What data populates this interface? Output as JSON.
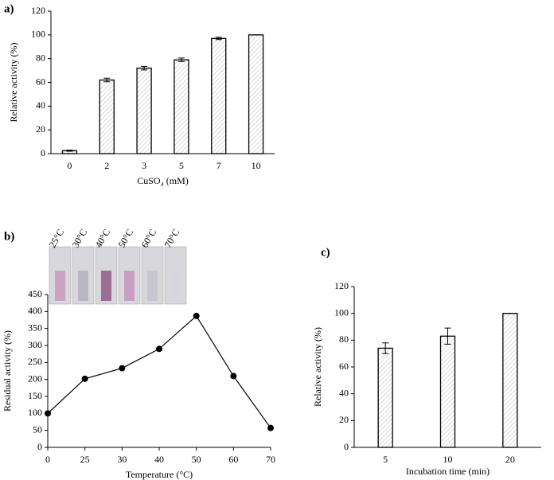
{
  "chart_data": [
    {
      "type": "bar",
      "label": "a)",
      "x_label": "CuSO₄ (mM)",
      "y_label": "Relative activity (%)",
      "categories": [
        "0",
        "2",
        "3",
        "5",
        "7",
        "10"
      ],
      "values": [
        2.5,
        62,
        72,
        79,
        97,
        100
      ],
      "errors": [
        0.5,
        1.5,
        1.5,
        1.5,
        1,
        0
      ],
      "color": "#000000",
      "pattern": "hatch",
      "ylim": [
        0,
        120
      ],
      "yticks": [
        0,
        20,
        40,
        60,
        80,
        100,
        120
      ]
    },
    {
      "type": "line",
      "label": "b)",
      "x_label": "Temperature (°C)",
      "y_label": "Residual activity (%)",
      "categories": [
        "0",
        "25",
        "30",
        "40",
        "50",
        "60",
        "70"
      ],
      "values": [
        100,
        202,
        233,
        290,
        387,
        210,
        57
      ],
      "color": "#000000",
      "photo_labels": [
        "25°C",
        "30°C",
        "40°C",
        "50°C",
        "60°C",
        "70°C"
      ],
      "ylim": [
        0,
        450
      ],
      "yticks": [
        0,
        50,
        100,
        150,
        200,
        250,
        300,
        350,
        400,
        450
      ]
    },
    {
      "type": "bar",
      "label": "c)",
      "x_label": "Incubation time (min)",
      "y_label": "Relative activity (%)",
      "categories": [
        "5",
        "10",
        "20"
      ],
      "values": [
        74,
        83,
        100
      ],
      "errors": [
        4,
        6,
        0
      ],
      "color": "#000000",
      "pattern": "hatch",
      "ylim": [
        0,
        120
      ],
      "yticks": [
        0,
        20,
        40,
        60,
        80,
        100,
        120
      ]
    }
  ]
}
